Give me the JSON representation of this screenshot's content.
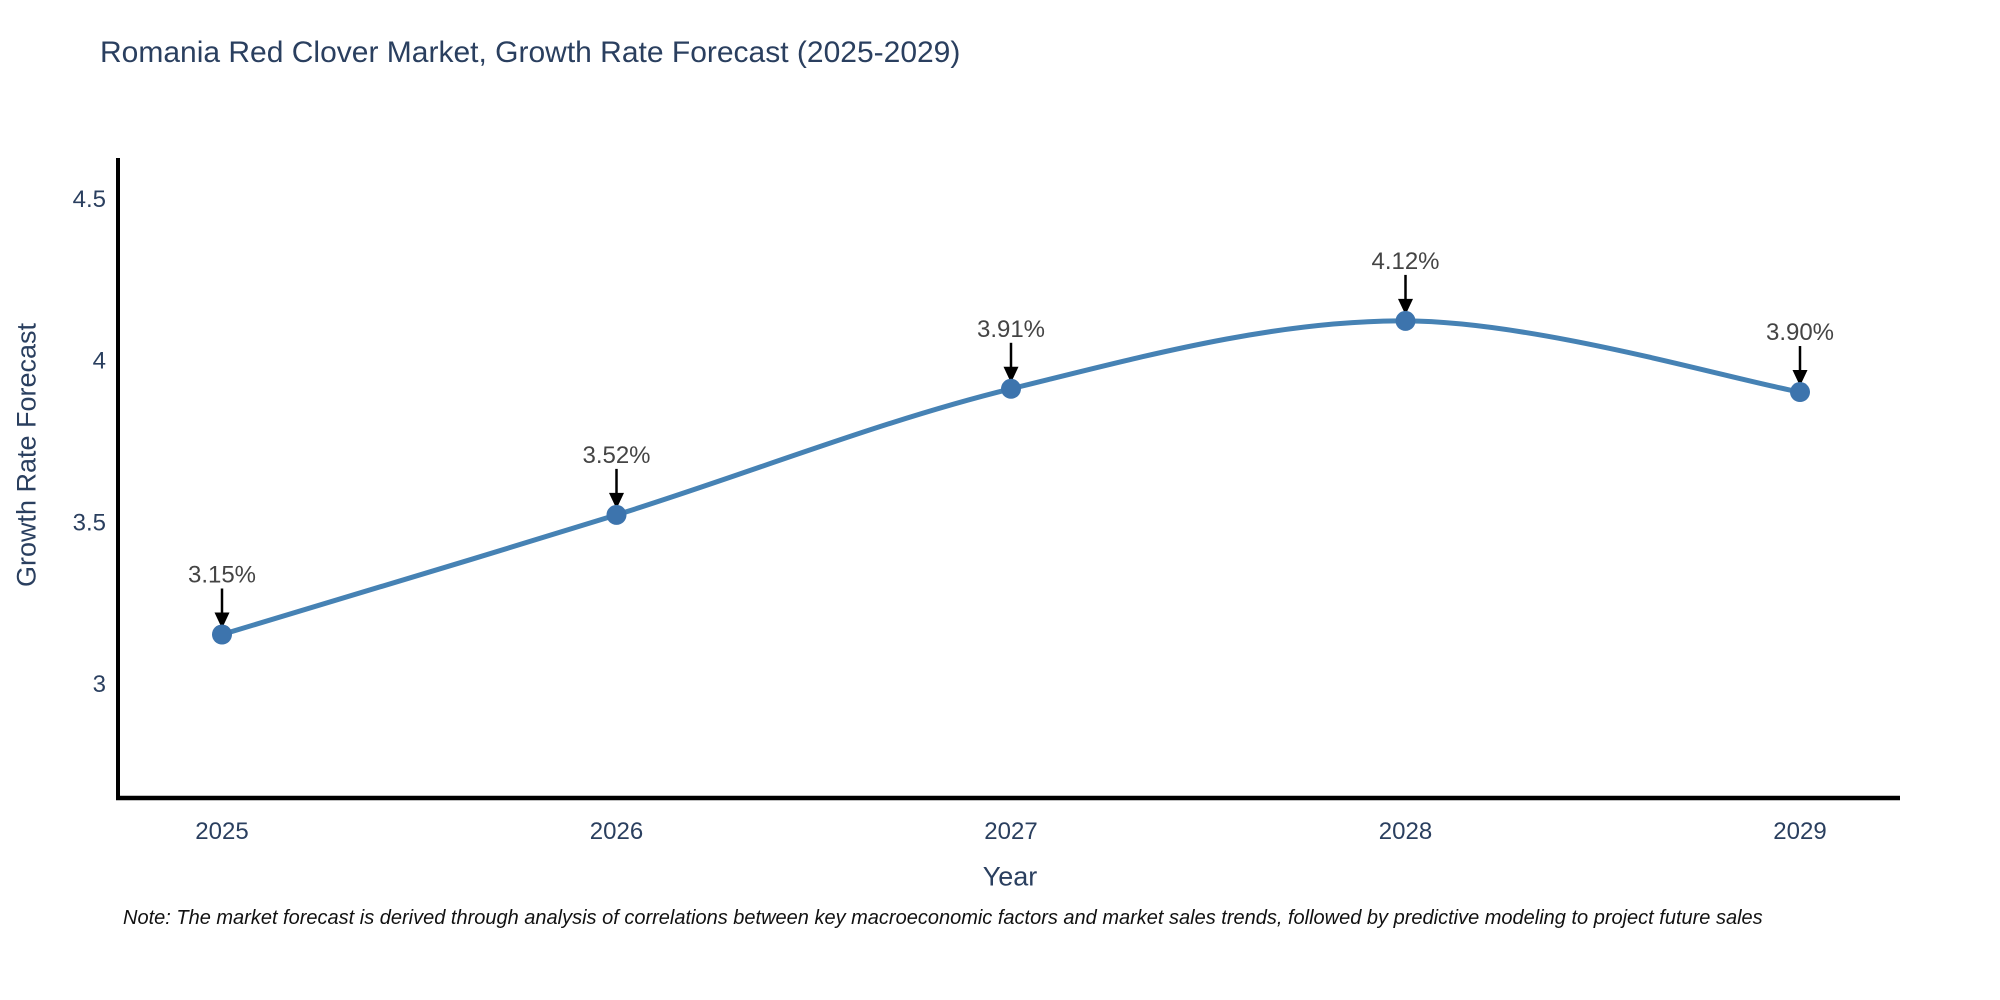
{
  "title": "Romania Red Clover Market, Growth Rate Forecast (2025-2029)",
  "note": "Note: The market forecast is derived through analysis of correlations between key macroeconomic factors and market sales trends, followed by predictive modeling to project future sales",
  "chart_data": {
    "type": "line",
    "title": "Romania Red Clover Market, Growth Rate Forecast (2025-2029)",
    "xlabel": "Year",
    "ylabel": "Growth Rate Forecast",
    "x": [
      2025,
      2026,
      2027,
      2028,
      2029
    ],
    "y": [
      3.15,
      3.52,
      3.91,
      4.12,
      3.9
    ],
    "point_labels": [
      "3.15%",
      "3.52%",
      "3.91%",
      "4.12%",
      "3.90%"
    ],
    "x_tick_labels": [
      "2025",
      "2026",
      "2027",
      "2028",
      "2029"
    ],
    "y_ticks": [
      3,
      3.5,
      4,
      4.5
    ],
    "y_tick_labels": [
      "3",
      "3.5",
      "4",
      "4.5"
    ],
    "xlim": [
      2024.73,
      2029.28
    ],
    "ylim": [
      2.64,
      4.62
    ],
    "line_shape": "spline",
    "grid": false,
    "legend_position": "none",
    "colors": {
      "line": "#4682b4",
      "marker": "#3d74ad",
      "axis": "#000000",
      "tick_text": "#2a3f5f",
      "annotation_text": "#444444",
      "annotation_arrow": "#000000"
    }
  }
}
